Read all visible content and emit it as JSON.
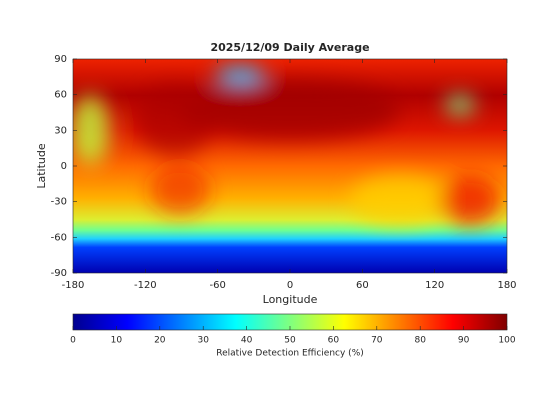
{
  "chart_data": {
    "type": "heatmap-map",
    "title": "2025/12/09 Daily Average",
    "x_label": "Longitude",
    "y_label": "Latitude",
    "xlim": [
      -180,
      180
    ],
    "xticks": [
      -180,
      -120,
      -60,
      0,
      60,
      120,
      180
    ],
    "ylim": [
      -90,
      90
    ],
    "yticks": [
      -90,
      -60,
      -30,
      0,
      30,
      60,
      90
    ],
    "colorbar": {
      "label": "Relative Detection Efficiency (%)",
      "clim": [
        0,
        100
      ],
      "ticks": [
        0,
        10,
        20,
        30,
        40,
        50,
        60,
        70,
        80,
        90,
        100
      ]
    }
  }
}
